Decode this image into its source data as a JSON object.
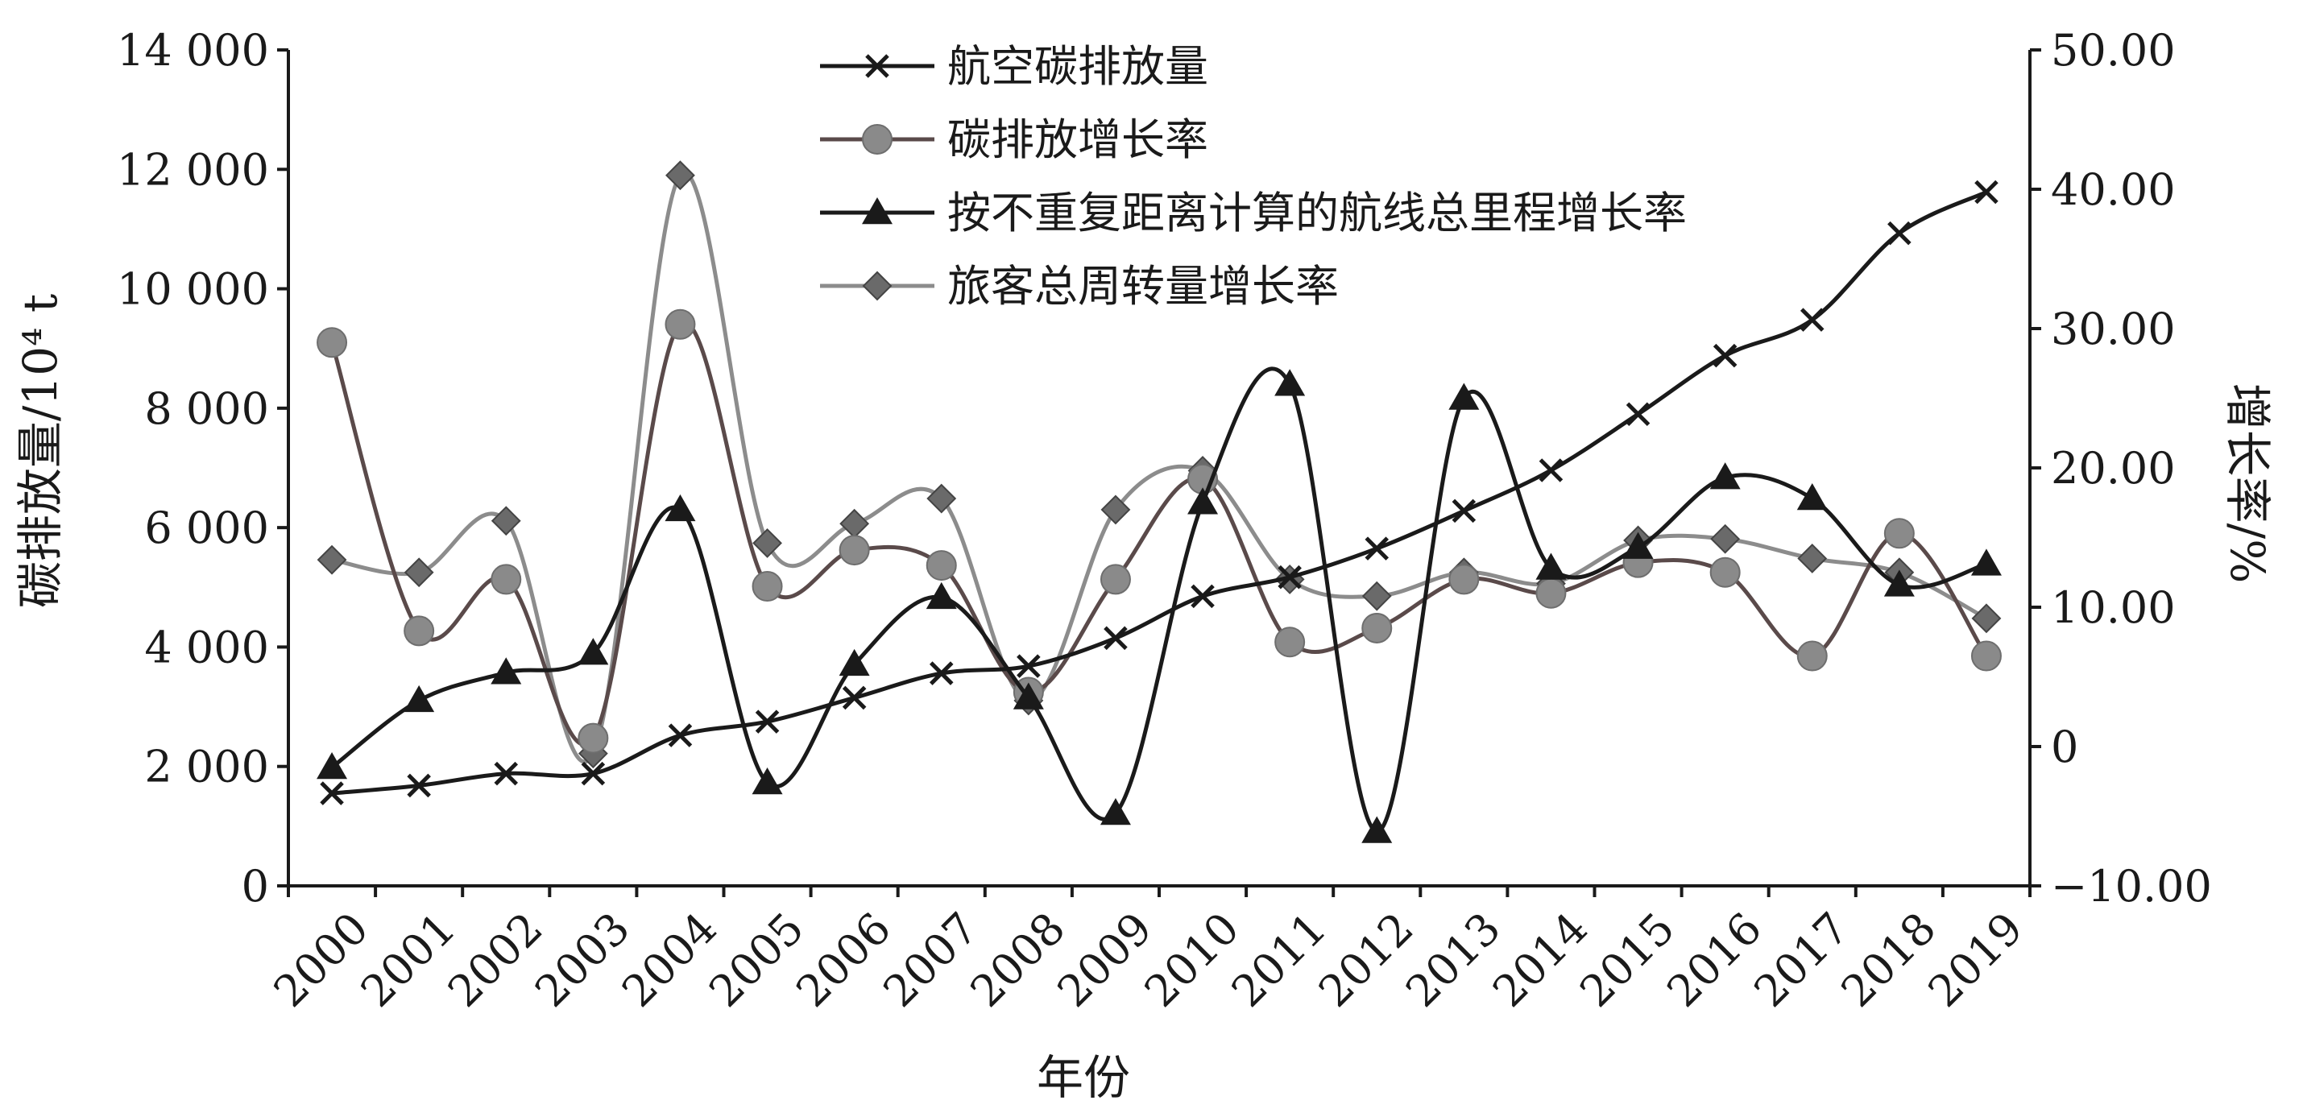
{
  "chart_data": {
    "type": "line",
    "xlabel": "年份",
    "ylabel_left": "碳排放量/10⁴ t",
    "ylabel_right": "增长率/%",
    "x": [
      "2000",
      "2001",
      "2002",
      "2003",
      "2004",
      "2005",
      "2006",
      "2007",
      "2008",
      "2009",
      "2010",
      "2011",
      "2012",
      "2013",
      "2014",
      "2015",
      "2016",
      "2017",
      "2018",
      "2019"
    ],
    "ylim_left": [
      0,
      14000
    ],
    "yticks_left": [
      "0",
      "2 000",
      "4 000",
      "6 000",
      "8 000",
      "10 000",
      "12 000",
      "14 000"
    ],
    "ylim_right": [
      -10,
      50
    ],
    "yticks_right": [
      "−10.00",
      "0",
      "10.00",
      "20.00",
      "30.00",
      "40.00",
      "50.00"
    ],
    "series": [
      {
        "name": "航空碳排放量",
        "axis": "left",
        "marker": "x",
        "color": "#1a1a1a",
        "values": [
          1550,
          1680,
          1880,
          1880,
          2520,
          2750,
          3150,
          3560,
          3680,
          4150,
          4850,
          5170,
          5650,
          6280,
          6960,
          7900,
          8880,
          9480,
          10930,
          11620
        ]
      },
      {
        "name": "碳排放增长率",
        "axis": "right",
        "marker": "circle",
        "color": "#555555",
        "values": [
          29.0,
          8.3,
          12.0,
          0.6,
          30.3,
          11.5,
          14.1,
          13.0,
          3.9,
          12.0,
          19.2,
          7.5,
          8.5,
          12.0,
          11.0,
          13.2,
          12.5,
          6.5,
          15.3,
          6.5
        ]
      },
      {
        "name": "按不重复距离计算的航线总里程增长率",
        "axis": "right",
        "marker": "triangle",
        "color": "#1a1a1a",
        "values": [
          -1.5,
          3.3,
          5.3,
          6.7,
          17.0,
          -2.6,
          5.9,
          10.7,
          3.5,
          -4.8,
          17.5,
          26.0,
          -6.1,
          25.0,
          12.8,
          14.3,
          19.3,
          17.8,
          11.6,
          13.1
        ]
      },
      {
        "name": "旅客总周转量增长率",
        "axis": "right",
        "marker": "diamond",
        "color": "#888888",
        "values": [
          13.4,
          12.5,
          16.2,
          -0.5,
          41.0,
          14.6,
          16.0,
          17.8,
          3.3,
          17.0,
          19.8,
          12.0,
          10.8,
          12.5,
          11.7,
          14.8,
          14.9,
          13.5,
          12.5,
          9.2
        ]
      }
    ],
    "grid": false,
    "legend_position": "top-center"
  }
}
